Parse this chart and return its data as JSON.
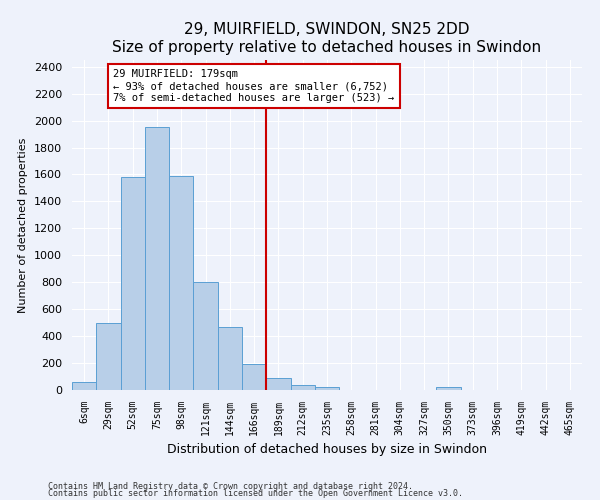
{
  "title": "29, MUIRFIELD, SWINDON, SN25 2DD",
  "subtitle": "Size of property relative to detached houses in Swindon",
  "xlabel": "Distribution of detached houses by size in Swindon",
  "ylabel": "Number of detached properties",
  "bar_labels": [
    "6sqm",
    "29sqm",
    "52sqm",
    "75sqm",
    "98sqm",
    "121sqm",
    "144sqm",
    "166sqm",
    "189sqm",
    "212sqm",
    "235sqm",
    "258sqm",
    "281sqm",
    "304sqm",
    "327sqm",
    "350sqm",
    "373sqm",
    "396sqm",
    "419sqm",
    "442sqm",
    "465sqm"
  ],
  "bar_values": [
    60,
    500,
    1580,
    1950,
    1590,
    800,
    470,
    195,
    90,
    35,
    25,
    0,
    0,
    0,
    0,
    20,
    0,
    0,
    0,
    0,
    0
  ],
  "bar_color": "#b8cfe8",
  "bar_edge_color": "#5a9fd4",
  "vline_x": 7.5,
  "vline_color": "#cc0000",
  "ylim": [
    0,
    2450
  ],
  "yticks": [
    0,
    200,
    400,
    600,
    800,
    1000,
    1200,
    1400,
    1600,
    1800,
    2000,
    2200,
    2400
  ],
  "annotation_title": "29 MUIRFIELD: 179sqm",
  "annotation_line1": "← 93% of detached houses are smaller (6,752)",
  "annotation_line2": "7% of semi-detached houses are larger (523) →",
  "annotation_box_color": "#cc0000",
  "footnote1": "Contains HM Land Registry data © Crown copyright and database right 2024.",
  "footnote2": "Contains public sector information licensed under the Open Government Licence v3.0.",
  "bg_color": "#eef2fb",
  "grid_color": "#ffffff",
  "title_fontsize": 11,
  "subtitle_fontsize": 9
}
